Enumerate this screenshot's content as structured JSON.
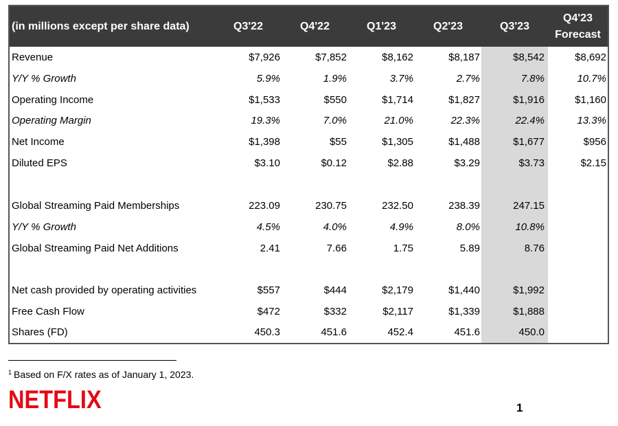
{
  "table": {
    "header_label": "(in millions except per share data)",
    "columns": [
      "Q3'22",
      "Q4'22",
      "Q1'23",
      "Q2'23",
      "Q3'23",
      "Q4'23",
      "Forecast"
    ],
    "rows": [
      {
        "label": "Revenue",
        "values": [
          "$7,926",
          "$7,852",
          "$8,162",
          "$8,187",
          "$8,542",
          "$8,692"
        ]
      },
      {
        "label": "Y/Y % Growth",
        "values": [
          "5.9%",
          "1.9%",
          "3.7%",
          "2.7%",
          "7.8%",
          "10.7%"
        ]
      },
      {
        "label": "Operating Income",
        "values": [
          "$1,533",
          "$550",
          "$1,714",
          "$1,827",
          "$1,916",
          "$1,160"
        ]
      },
      {
        "label": "Operating Margin",
        "values": [
          "19.3%",
          "7.0%",
          "21.0%",
          "22.3%",
          "22.4%",
          "13.3%"
        ]
      },
      {
        "label": "Net Income",
        "values": [
          "$1,398",
          "$55",
          "$1,305",
          "$1,488",
          "$1,677",
          "$956"
        ]
      },
      {
        "label": "Diluted EPS",
        "values": [
          "$3.10",
          "$0.12",
          "$2.88",
          "$3.29",
          "$3.73",
          "$2.15"
        ]
      },
      {
        "label": "Global Streaming Paid Memberships",
        "values": [
          "223.09",
          "230.75",
          "232.50",
          "238.39",
          "247.15",
          ""
        ]
      },
      {
        "label": "Y/Y % Growth",
        "values": [
          "4.5%",
          "4.0%",
          "4.9%",
          "8.0%",
          "10.8%",
          ""
        ]
      },
      {
        "label": "Global Streaming Paid Net Additions",
        "values": [
          "2.41",
          "7.66",
          "1.75",
          "5.89",
          "8.76",
          ""
        ]
      },
      {
        "label": "Net cash provided by operating activities",
        "values": [
          "$557",
          "$444",
          "$2,179",
          "$1,440",
          "$1,992",
          ""
        ]
      },
      {
        "label": "Free Cash Flow",
        "values": [
          "$472",
          "$332",
          "$2,117",
          "$1,339",
          "$1,888",
          ""
        ]
      },
      {
        "label": "Shares (FD)",
        "values": [
          "450.3",
          "451.6",
          "452.4",
          "451.6",
          "450.0",
          ""
        ]
      }
    ]
  },
  "footnote": {
    "marker": "1",
    "text": "Based on F/X rates as of January 1, 2023."
  },
  "logo": {
    "text": "NETFLIX",
    "color": "#e50914"
  },
  "page_number": "1",
  "colors": {
    "header_bg": "#3b3b3b",
    "highlight_column": "#d9d9d9"
  }
}
